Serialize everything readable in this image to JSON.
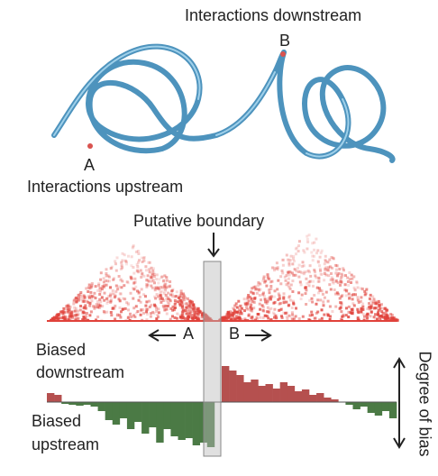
{
  "top": {
    "label_downstream": "Interactions downstream",
    "label_b": "B",
    "label_a": "A",
    "label_upstream": "Interactions upstream"
  },
  "middle": {
    "boundary_label": "Putative boundary",
    "label_a": "A",
    "label_b": "B"
  },
  "bias_track": {
    "label_down_1": "Biased",
    "label_down_2": "downstream",
    "label_up_1": "Biased",
    "label_up_2": "upstream",
    "axis_label": "Degree of bias",
    "positive_color": "#b5504f",
    "negative_color": "#4b7a45",
    "ylim": [
      -60,
      60
    ],
    "values": [
      10,
      8,
      -2,
      -3,
      -4,
      -3,
      -5,
      -10,
      -20,
      -25,
      -18,
      -30,
      -22,
      -35,
      -28,
      -45,
      -30,
      -38,
      -42,
      -40,
      -48,
      -45,
      -50,
      0,
      40,
      35,
      30,
      22,
      25,
      18,
      20,
      15,
      22,
      18,
      12,
      14,
      8,
      10,
      5,
      3,
      0,
      -3,
      -8,
      -5,
      -12,
      -15,
      -10,
      -18
    ]
  }
}
